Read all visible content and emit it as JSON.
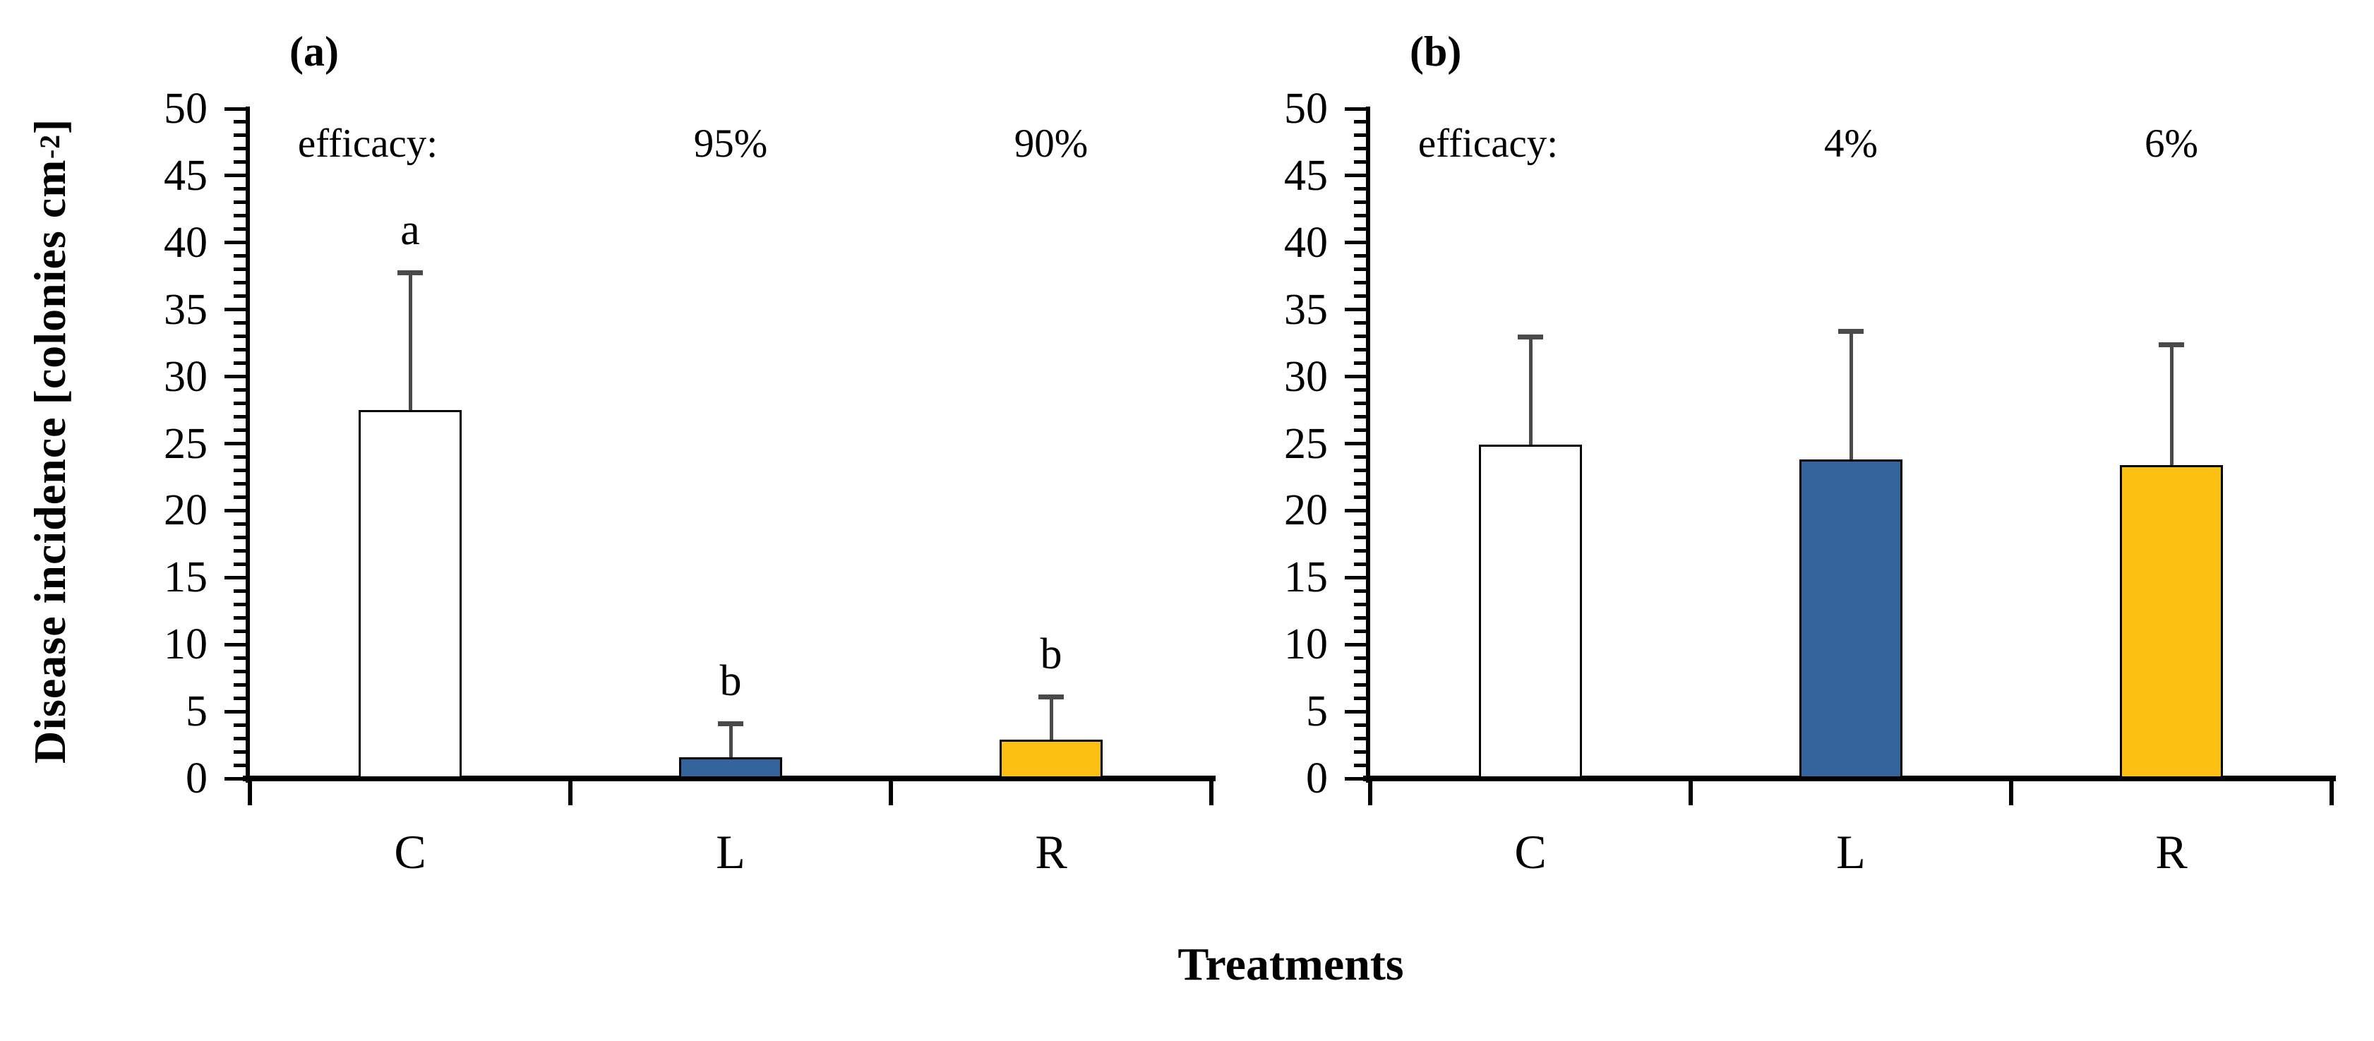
{
  "figure": {
    "y_axis_title_main": "Disease incidence [colonies cm",
    "y_axis_title_sup": "-2",
    "y_axis_title_end": "]",
    "x_axis_title": "Treatments",
    "axis_color": "#000000",
    "background_color": "#FFFFFF"
  },
  "chart_data": [
    {
      "type": "bar",
      "panel_label": "(a)",
      "title": "",
      "xlabel": "Treatments",
      "ylabel": "Disease incidence [colonies cm⁻²]",
      "categories": [
        "C",
        "L",
        "R"
      ],
      "values": [
        27.5,
        1.6,
        2.9
      ],
      "error_up": [
        10.3,
        2.5,
        3.2
      ],
      "sig_letters": [
        "a",
        "b",
        "b"
      ],
      "annotation_label": "efficacy:",
      "annotations": [
        "",
        "95%",
        "90%"
      ],
      "ylim": [
        0,
        50
      ],
      "ytick_step": 5,
      "minor_tick_step": 1,
      "ytick_labels": [
        "50",
        "45",
        "40",
        "35",
        "30",
        "25",
        "20",
        "15",
        "10",
        "5",
        "0"
      ],
      "grid": false,
      "legend": null,
      "bar_colors": [
        "#FFFFFF",
        "#35639B",
        "#FCC013"
      ],
      "bar_border_color": "#000000",
      "error_color": "#4A4A4A"
    },
    {
      "type": "bar",
      "panel_label": "(b)",
      "title": "",
      "xlabel": "Treatments",
      "ylabel": "Disease incidence [colonies cm⁻²]",
      "categories": [
        "C",
        "L",
        "R"
      ],
      "values": [
        24.9,
        23.8,
        23.4
      ],
      "error_up": [
        8.1,
        9.6,
        9.0
      ],
      "sig_letters": [
        "",
        "",
        ""
      ],
      "annotation_label": "efficacy:",
      "annotations": [
        "",
        "4%",
        "6%"
      ],
      "ylim": [
        0,
        50
      ],
      "ytick_step": 5,
      "minor_tick_step": 1,
      "ytick_labels": [
        "50",
        "45",
        "40",
        "35",
        "30",
        "25",
        "20",
        "15",
        "10",
        "5",
        "0"
      ],
      "grid": false,
      "legend": null,
      "bar_colors": [
        "#FFFFFF",
        "#35639B",
        "#FCC013"
      ],
      "bar_border_color": "#000000",
      "error_color": "#4A4A4A"
    }
  ]
}
